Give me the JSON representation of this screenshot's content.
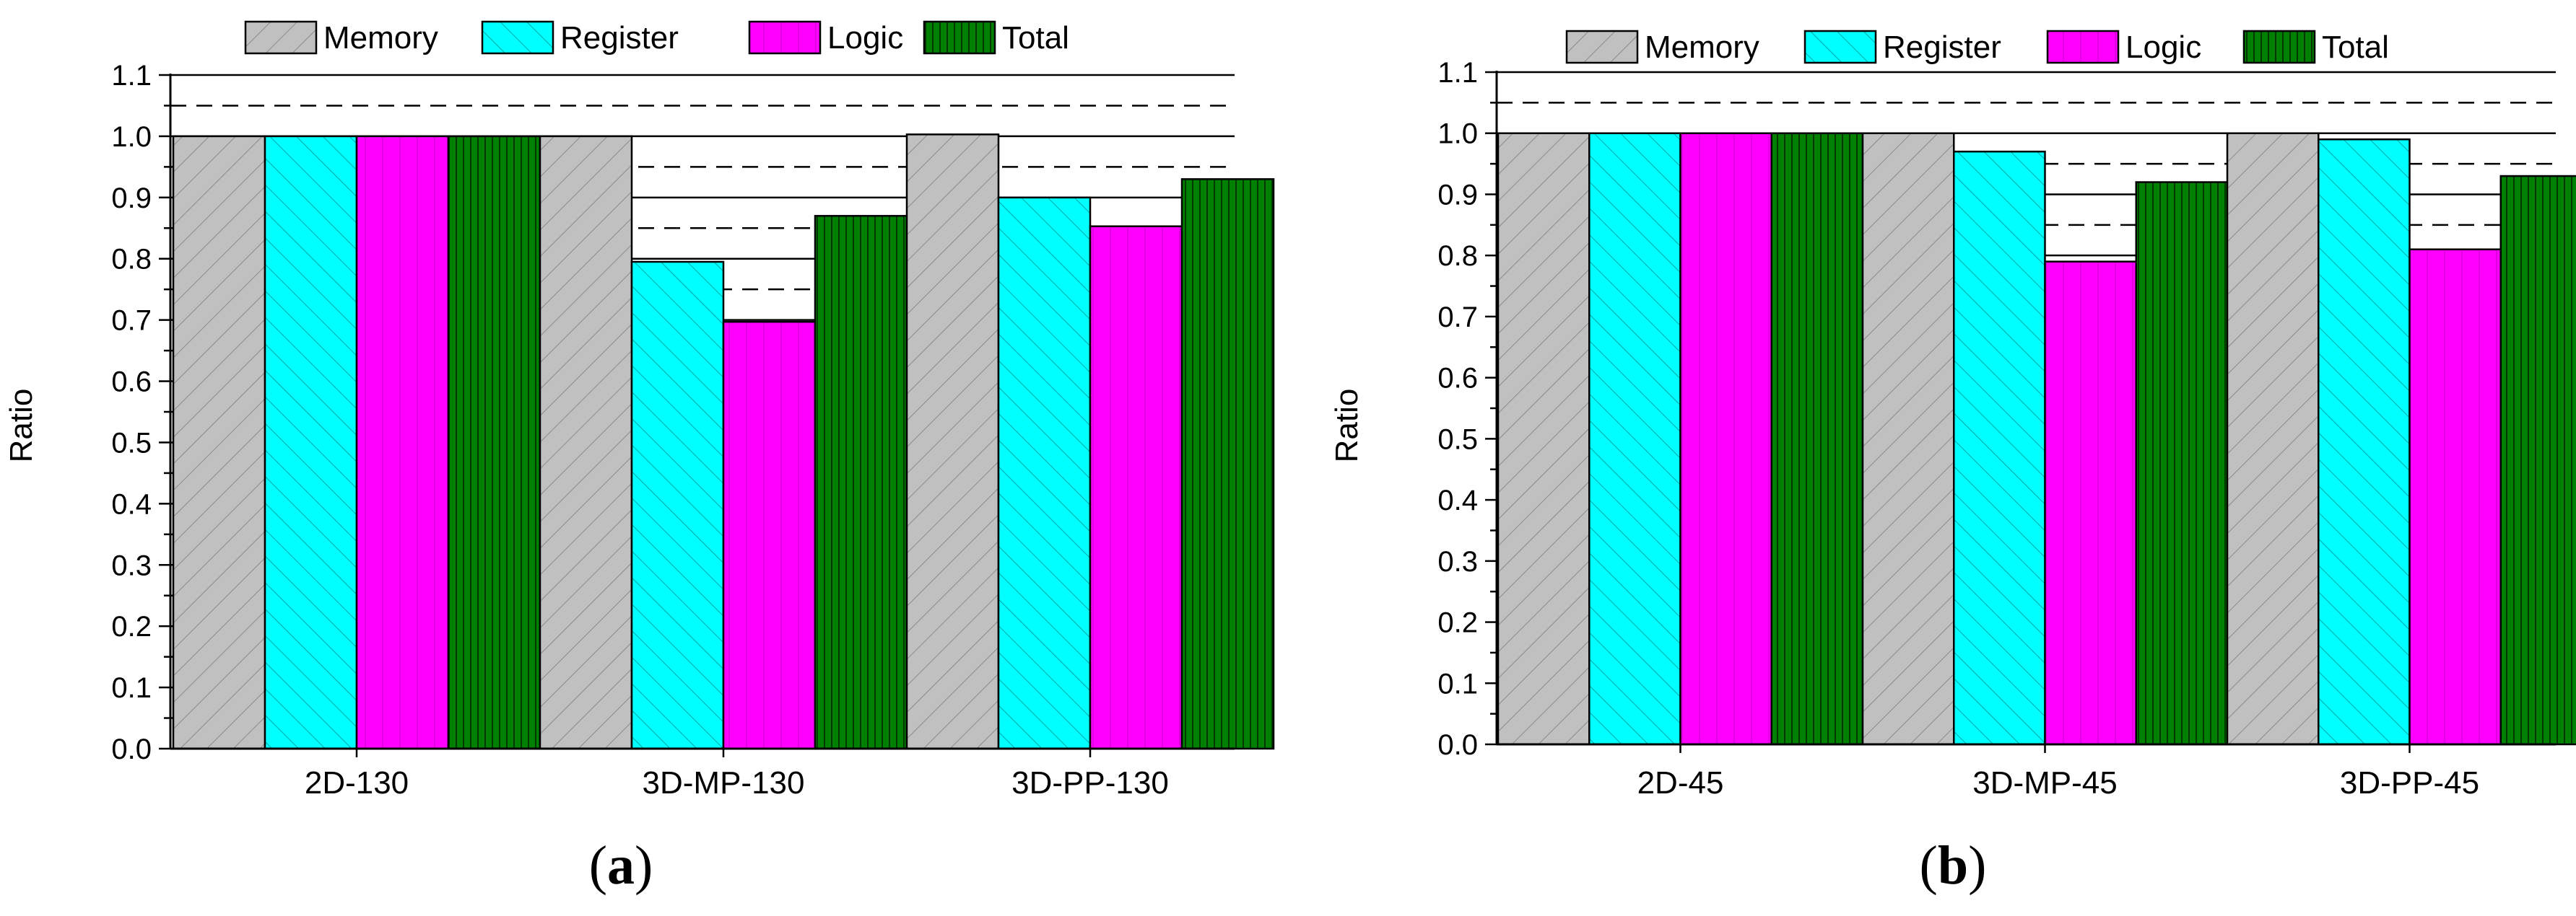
{
  "chart_data": [
    {
      "type": "bar",
      "panel_label": "a",
      "categories": [
        "2D-130",
        "3D-MP-130",
        "3D-PP-130"
      ],
      "series": [
        {
          "name": "Memory",
          "values": [
            1.0,
            1.0,
            1.003
          ],
          "color": "#c0c0c0",
          "pattern": "diag-right"
        },
        {
          "name": "Register",
          "values": [
            1.0,
            0.795,
            0.9
          ],
          "color": "#00ffff",
          "pattern": "diag-left"
        },
        {
          "name": "Logic",
          "values": [
            1.0,
            0.697,
            0.853
          ],
          "color": "#ff00ff",
          "pattern": "vertical"
        },
        {
          "name": "Total",
          "values": [
            1.0,
            0.87,
            0.93
          ],
          "color": "#008000",
          "pattern": "vertical-dense"
        }
      ],
      "xlabel": "",
      "ylabel": "Ratio",
      "ylim": [
        0.0,
        1.1
      ],
      "yticks": [
        "0.0",
        "0.1",
        "0.2",
        "0.3",
        "0.4",
        "0.5",
        "0.6",
        "0.7",
        "0.8",
        "0.9",
        "1.0",
        "1.1"
      ],
      "grid": "solid major lines at ticks, dashed minor lines at half-ticks",
      "legend": "top"
    },
    {
      "type": "bar",
      "panel_label": "b",
      "categories": [
        "2D-45",
        "3D-MP-45",
        "3D-PP-45"
      ],
      "series": [
        {
          "name": "Memory",
          "values": [
            1.0,
            1.0,
            1.0
          ],
          "color": "#c0c0c0",
          "pattern": "diag-right"
        },
        {
          "name": "Register",
          "values": [
            1.0,
            0.97,
            0.99
          ],
          "color": "#00ffff",
          "pattern": "diag-left"
        },
        {
          "name": "Logic",
          "values": [
            1.0,
            0.79,
            0.81
          ],
          "color": "#ff00ff",
          "pattern": "vertical"
        },
        {
          "name": "Total",
          "values": [
            1.0,
            0.92,
            0.93
          ],
          "color": "#008000",
          "pattern": "vertical-dense"
        }
      ],
      "xlabel": "",
      "ylabel": "Ratio",
      "ylim": [
        0.0,
        1.1
      ],
      "yticks": [
        "0.0",
        "0.1",
        "0.2",
        "0.3",
        "0.4",
        "0.5",
        "0.6",
        "0.7",
        "0.8",
        "0.9",
        "1.0",
        "1.1"
      ],
      "grid": "solid major lines at ticks, dashed minor lines at half-ticks",
      "legend": "top"
    }
  ]
}
